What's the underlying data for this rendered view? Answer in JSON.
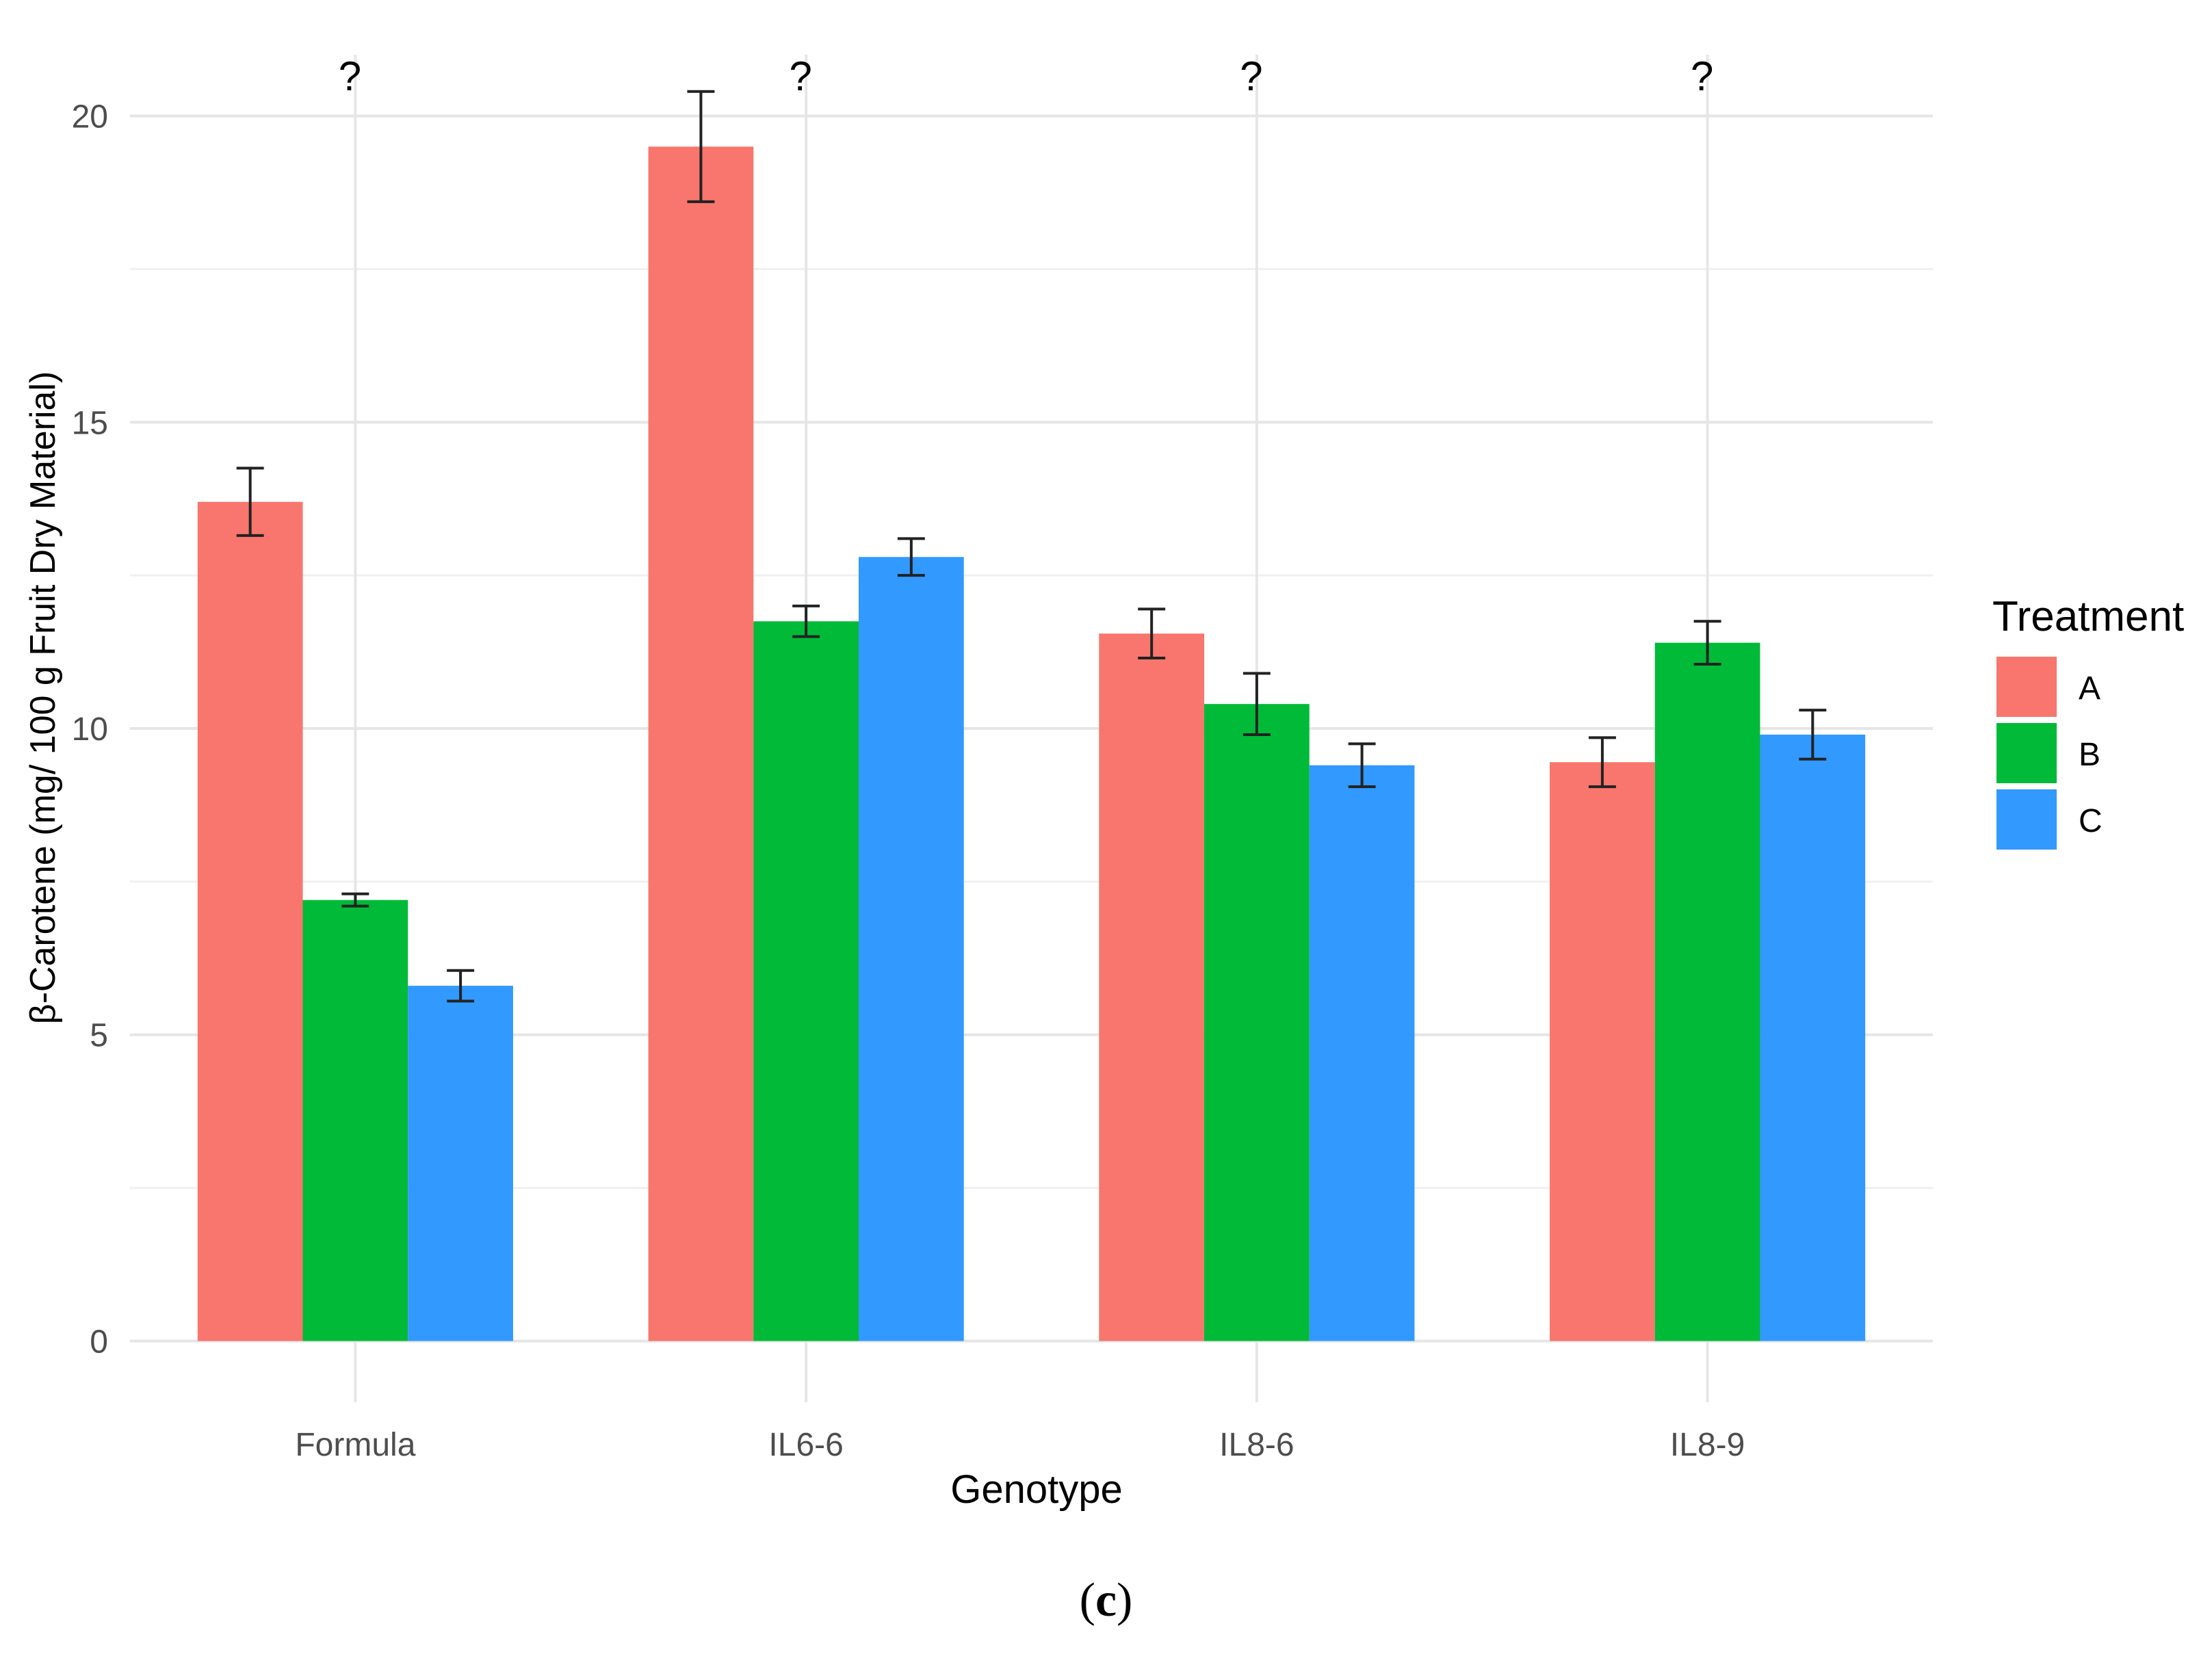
{
  "chart_data": {
    "type": "bar",
    "title": "",
    "xlabel": "Genotype",
    "ylabel": "β-Carotene (mg/ 100 g Fruit Dry Material)",
    "categories": [
      "Formula",
      "IL6-6",
      "IL8-6",
      "IL8-9"
    ],
    "ylim": [
      -1,
      21
    ],
    "yticks": [
      0,
      5,
      10,
      15,
      20
    ],
    "grid": true,
    "legend_title": "Treatment",
    "legend_position": "right",
    "series": [
      {
        "name": "A",
        "color": "#F8766D",
        "values": [
          13.7,
          19.5,
          11.55,
          9.45
        ],
        "errors": [
          0.55,
          0.9,
          0.4,
          0.4
        ]
      },
      {
        "name": "B",
        "color": "#00BA38",
        "values": [
          7.2,
          11.75,
          10.4,
          11.4
        ],
        "errors": [
          0.1,
          0.25,
          0.5,
          0.35
        ]
      },
      {
        "name": "C",
        "color": "#3299FF",
        "values": [
          5.8,
          12.8,
          9.4,
          9.9
        ],
        "errors": [
          0.25,
          0.3,
          0.35,
          0.4
        ]
      }
    ],
    "annotations": [
      "?",
      "?",
      "?",
      "?"
    ]
  },
  "caption": {
    "open": "(",
    "letter": "c",
    "close": ")"
  }
}
